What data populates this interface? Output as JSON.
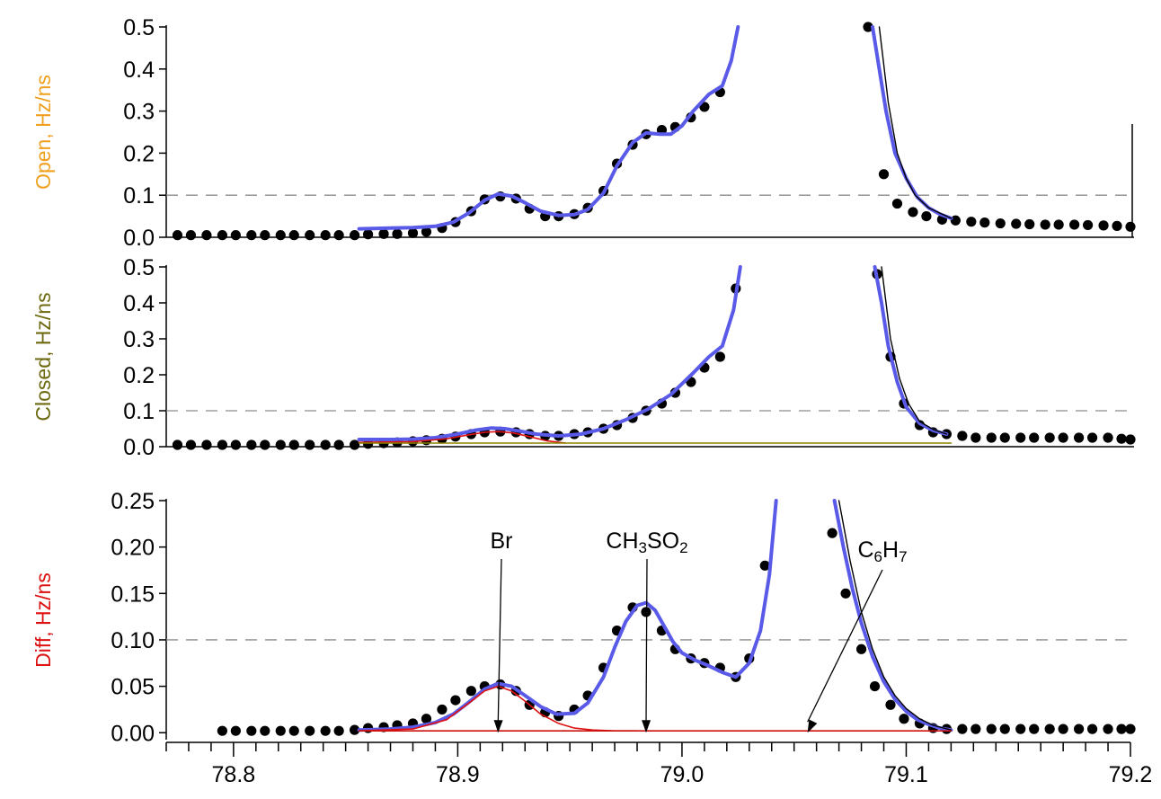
{
  "chart_data": [
    {
      "type": "scatter",
      "panel": "open",
      "ylabel": [
        "Open",
        ", Hz/ns"
      ],
      "ylabel_colors": [
        "#f0a020",
        "#f0a020"
      ],
      "ylim": [
        0,
        0.5
      ],
      "yticks": [
        "0.0",
        "0.1",
        "0.2",
        "0.3",
        "0.4",
        "0.5"
      ],
      "ytick_values": [
        0,
        0.1,
        0.2,
        0.3,
        0.4,
        0.5
      ],
      "reference_line": 0.1,
      "series": [
        {
          "role": "measured points",
          "style": "markers",
          "color": "#000000",
          "x": [
            78.775,
            78.781,
            78.788,
            78.795,
            78.801,
            78.808,
            78.814,
            78.821,
            78.827,
            78.834,
            78.841,
            78.847,
            78.854,
            78.86,
            78.867,
            78.873,
            78.88,
            78.886,
            78.893,
            78.899,
            78.906,
            78.912,
            78.919,
            78.926,
            78.932,
            78.939,
            78.945,
            78.952,
            78.958,
            78.965,
            78.971,
            78.978,
            78.984,
            78.991,
            78.997,
            79.004,
            79.01,
            79.017,
            79.083,
            79.09,
            79.096,
            79.103,
            79.109,
            79.116,
            79.122,
            79.129,
            79.135,
            79.142,
            79.149,
            79.155,
            79.162,
            79.168,
            79.175,
            79.181,
            79.188,
            79.194,
            79.2
          ],
          "y": [
            0.005,
            0.005,
            0.005,
            0.005,
            0.005,
            0.005,
            0.005,
            0.005,
            0.005,
            0.005,
            0.005,
            0.005,
            0.005,
            0.007,
            0.008,
            0.008,
            0.01,
            0.013,
            0.022,
            0.036,
            0.062,
            0.09,
            0.097,
            0.092,
            0.068,
            0.05,
            0.05,
            0.055,
            0.07,
            0.11,
            0.175,
            0.22,
            0.245,
            0.255,
            0.262,
            0.285,
            0.31,
            0.345,
            0.5,
            0.15,
            0.08,
            0.06,
            0.05,
            0.042,
            0.04,
            0.037,
            0.035,
            0.033,
            0.032,
            0.031,
            0.03,
            0.03,
            0.03,
            0.029,
            0.028,
            0.027,
            0.025
          ]
        },
        {
          "role": "fit",
          "style": "line",
          "color": "#5a5ae8",
          "x": [
            78.856,
            78.87,
            78.88,
            78.89,
            78.898,
            78.905,
            78.912,
            78.918,
            78.924,
            78.93,
            78.937,
            78.945,
            78.952,
            78.958,
            78.965,
            78.971,
            78.978,
            78.984,
            78.99,
            78.995,
            79.0,
            79.005,
            79.012,
            79.018,
            79.022,
            79.025
          ],
          "y": [
            0.02,
            0.022,
            0.023,
            0.026,
            0.036,
            0.058,
            0.088,
            0.103,
            0.098,
            0.082,
            0.062,
            0.052,
            0.054,
            0.066,
            0.105,
            0.17,
            0.225,
            0.248,
            0.245,
            0.245,
            0.265,
            0.3,
            0.34,
            0.36,
            0.42,
            0.5
          ]
        },
        {
          "role": "fit",
          "style": "line",
          "color": "#5a5ae8",
          "x": [
            79.085,
            79.088,
            79.091,
            79.095,
            79.1,
            79.105,
            79.11,
            79.115,
            79.12
          ],
          "y": [
            0.5,
            0.4,
            0.3,
            0.2,
            0.14,
            0.095,
            0.07,
            0.055,
            0.045
          ]
        },
        {
          "role": "thin curve",
          "style": "line",
          "color": "#000000",
          "x": [
            79.088,
            79.092,
            79.096,
            79.1,
            79.104,
            79.11,
            79.116,
            79.12
          ],
          "y": [
            0.5,
            0.32,
            0.2,
            0.14,
            0.1,
            0.07,
            0.055,
            0.045
          ]
        }
      ]
    },
    {
      "type": "scatter",
      "panel": "closed",
      "ylabel": [
        "Closed",
        ", Hz/ns"
      ],
      "ylabel_colors": [
        "#6e6a12",
        "#6e6a12"
      ],
      "ylim": [
        0,
        0.5
      ],
      "yticks": [
        "0.0",
        "0.1",
        "0.2",
        "0.3",
        "0.4",
        "0.5"
      ],
      "ytick_values": [
        0,
        0.1,
        0.2,
        0.3,
        0.4,
        0.5
      ],
      "reference_line": 0.1,
      "series": [
        {
          "role": "measured points",
          "style": "markers",
          "color": "#000000",
          "x": [
            78.775,
            78.781,
            78.788,
            78.795,
            78.801,
            78.808,
            78.814,
            78.821,
            78.827,
            78.834,
            78.841,
            78.847,
            78.854,
            78.86,
            78.867,
            78.873,
            78.88,
            78.886,
            78.893,
            78.899,
            78.906,
            78.912,
            78.919,
            78.926,
            78.932,
            78.939,
            78.945,
            78.952,
            78.958,
            78.965,
            78.971,
            78.978,
            78.984,
            78.991,
            78.997,
            79.004,
            79.01,
            79.017,
            79.024,
            79.087,
            79.093,
            79.099,
            79.106,
            79.112,
            79.118,
            79.125,
            79.131,
            79.138,
            79.144,
            79.151,
            79.157,
            79.164,
            79.17,
            79.177,
            79.183,
            79.19,
            79.196,
            79.2
          ],
          "y": [
            0.005,
            0.005,
            0.005,
            0.005,
            0.005,
            0.005,
            0.005,
            0.005,
            0.005,
            0.005,
            0.005,
            0.005,
            0.005,
            0.008,
            0.01,
            0.012,
            0.015,
            0.018,
            0.022,
            0.028,
            0.035,
            0.04,
            0.042,
            0.04,
            0.035,
            0.03,
            0.03,
            0.035,
            0.04,
            0.05,
            0.06,
            0.08,
            0.1,
            0.12,
            0.15,
            0.18,
            0.22,
            0.25,
            0.44,
            0.48,
            0.25,
            0.12,
            0.06,
            0.04,
            0.035,
            0.03,
            0.025,
            0.025,
            0.025,
            0.025,
            0.025,
            0.025,
            0.025,
            0.025,
            0.025,
            0.025,
            0.022,
            0.02
          ]
        },
        {
          "role": "fit",
          "style": "line",
          "color": "#5a5ae8",
          "x": [
            78.856,
            78.87,
            78.88,
            78.89,
            78.9,
            78.908,
            78.915,
            78.921,
            78.928,
            78.935,
            78.945,
            78.955,
            78.965,
            78.975,
            78.985,
            78.995,
            79.005,
            79.012,
            79.018,
            79.023,
            79.026
          ],
          "y": [
            0.02,
            0.02,
            0.021,
            0.025,
            0.035,
            0.046,
            0.052,
            0.05,
            0.043,
            0.035,
            0.03,
            0.035,
            0.05,
            0.075,
            0.105,
            0.145,
            0.205,
            0.25,
            0.28,
            0.38,
            0.5
          ]
        },
        {
          "role": "fit",
          "style": "line",
          "color": "#5a5ae8",
          "x": [
            79.086,
            79.089,
            79.092,
            79.096,
            79.1,
            79.106,
            79.112,
            79.118
          ],
          "y": [
            0.5,
            0.4,
            0.28,
            0.18,
            0.11,
            0.065,
            0.045,
            0.035
          ]
        },
        {
          "role": "thin curve",
          "style": "line",
          "color": "#000000",
          "x": [
            79.089,
            79.093,
            79.097,
            79.101,
            79.106,
            79.112,
            79.118
          ],
          "y": [
            0.5,
            0.3,
            0.19,
            0.12,
            0.07,
            0.048,
            0.035
          ]
        },
        {
          "role": "Br component",
          "style": "line",
          "color": "#dd1111",
          "x": [
            78.856,
            78.88,
            78.895,
            78.905,
            78.912,
            78.918,
            78.925,
            78.932,
            78.94,
            78.948
          ],
          "y": [
            0.012,
            0.014,
            0.022,
            0.033,
            0.04,
            0.042,
            0.038,
            0.028,
            0.016,
            0.01
          ]
        },
        {
          "role": "baseline",
          "style": "line",
          "color": "#8a8200",
          "x": [
            78.856,
            79.12
          ],
          "y": [
            0.01,
            0.01
          ]
        }
      ]
    },
    {
      "type": "scatter",
      "panel": "diff",
      "ylabel": [
        "Diff",
        ", Hz/ns"
      ],
      "ylabel_colors": [
        "#dd1111",
        "#dd1111"
      ],
      "ylim": [
        -0.0075,
        0.25
      ],
      "yticks": [
        "0.00",
        "0.05",
        "0.10",
        "0.15",
        "0.20",
        "0.25"
      ],
      "ytick_values": [
        0,
        0.05,
        0.1,
        0.15,
        0.2,
        0.25
      ],
      "reference_line": 0.1,
      "xlim": [
        78.77,
        79.2
      ],
      "xticks": [
        "78.8",
        "78.9",
        "79.0",
        "79.1",
        "79.2"
      ],
      "xtick_values": [
        78.8,
        78.9,
        79.0,
        79.1,
        79.2
      ],
      "series": [
        {
          "role": "measured points",
          "style": "markers",
          "color": "#000000",
          "x": [
            78.795,
            78.801,
            78.808,
            78.814,
            78.821,
            78.827,
            78.834,
            78.841,
            78.847,
            78.854,
            78.86,
            78.867,
            78.873,
            78.88,
            78.886,
            78.893,
            78.899,
            78.906,
            78.912,
            78.919,
            78.926,
            78.932,
            78.939,
            78.945,
            78.952,
            78.958,
            78.965,
            78.971,
            78.978,
            78.984,
            78.991,
            78.997,
            79.004,
            79.01,
            79.017,
            79.024,
            79.03,
            79.037,
            79.067,
            79.073,
            79.08,
            79.086,
            79.093,
            79.099,
            79.106,
            79.112,
            79.118,
            79.125,
            79.131,
            79.138,
            79.144,
            79.151,
            79.157,
            79.164,
            79.17,
            79.177,
            79.183,
            79.19,
            79.196,
            79.2
          ],
          "y": [
            0.002,
            0.002,
            0.002,
            0.002,
            0.002,
            0.002,
            0.002,
            0.002,
            0.002,
            0.003,
            0.005,
            0.006,
            0.008,
            0.01,
            0.015,
            0.025,
            0.035,
            0.045,
            0.05,
            0.052,
            0.045,
            0.03,
            0.022,
            0.018,
            0.025,
            0.04,
            0.07,
            0.11,
            0.135,
            0.13,
            0.11,
            0.09,
            0.08,
            0.075,
            0.07,
            0.06,
            0.08,
            0.18,
            0.215,
            0.15,
            0.09,
            0.05,
            0.03,
            0.015,
            0.01,
            0.005,
            0.004,
            0.004,
            0.004,
            0.004,
            0.004,
            0.004,
            0.004,
            0.004,
            0.004,
            0.004,
            0.004,
            0.004,
            0.004,
            0.004
          ]
        },
        {
          "role": "fit",
          "style": "line",
          "color": "#5a5ae8",
          "x": [
            78.856,
            78.87,
            78.88,
            78.89,
            78.898,
            78.905,
            78.912,
            78.918,
            78.924,
            78.93,
            78.937,
            78.944,
            78.952,
            78.958,
            78.965,
            78.97,
            78.975,
            78.98,
            78.984,
            78.988,
            78.992,
            78.996,
            79.0,
            79.006,
            79.012,
            79.018,
            79.024,
            79.03,
            79.035,
            79.039,
            79.042
          ],
          "y": [
            0.003,
            0.004,
            0.006,
            0.011,
            0.02,
            0.033,
            0.047,
            0.053,
            0.05,
            0.04,
            0.028,
            0.02,
            0.021,
            0.032,
            0.06,
            0.092,
            0.12,
            0.137,
            0.14,
            0.132,
            0.115,
            0.098,
            0.086,
            0.078,
            0.072,
            0.065,
            0.06,
            0.075,
            0.11,
            0.17,
            0.25
          ]
        },
        {
          "role": "fit",
          "style": "line",
          "color": "#5a5ae8",
          "x": [
            79.068,
            79.072,
            79.076,
            79.08,
            79.085,
            79.09,
            79.095,
            79.1,
            79.105,
            79.11,
            79.115,
            79.12
          ],
          "y": [
            0.25,
            0.2,
            0.155,
            0.118,
            0.082,
            0.055,
            0.036,
            0.023,
            0.014,
            0.009,
            0.005,
            0.003
          ]
        },
        {
          "role": "thin curve",
          "style": "line",
          "color": "#000000",
          "x": [
            79.07,
            79.075,
            79.08,
            79.085,
            79.09,
            79.095,
            79.1,
            79.106,
            79.112,
            79.12
          ],
          "y": [
            0.25,
            0.185,
            0.13,
            0.09,
            0.06,
            0.04,
            0.026,
            0.015,
            0.008,
            0.003
          ]
        },
        {
          "role": "Br component",
          "style": "line",
          "color": "#dd1111",
          "x": [
            78.856,
            78.88,
            78.895,
            78.905,
            78.912,
            78.918,
            78.924,
            78.93,
            78.937,
            78.945,
            78.952,
            78.96,
            78.97,
            78.98
          ],
          "y": [
            0.002,
            0.004,
            0.014,
            0.032,
            0.045,
            0.05,
            0.045,
            0.034,
            0.02,
            0.01,
            0.005,
            0.003,
            0.002,
            0.002
          ]
        },
        {
          "role": "baseline",
          "style": "line",
          "color": "#cc1111",
          "x": [
            78.856,
            79.12
          ],
          "y": [
            0.002,
            0.002
          ]
        }
      ],
      "annotations": [
        {
          "label": "Br",
          "sub": "",
          "parts": [
            {
              "t": "Br"
            }
          ],
          "x": 78.918,
          "y": 0.0
        },
        {
          "label": "CH3SO2",
          "parts": [
            {
              "t": "CH"
            },
            {
              "t": "3",
              "sub": true
            },
            {
              "t": "SO"
            },
            {
              "t": "2",
              "sub": true
            }
          ],
          "x": 78.984,
          "y": 0.0
        },
        {
          "label": "C6H7",
          "parts": [
            {
              "t": "C"
            },
            {
              "t": "6",
              "sub": true
            },
            {
              "t": "H"
            },
            {
              "t": "7",
              "sub": true
            }
          ],
          "x": 79.056,
          "y": 0.0
        }
      ]
    }
  ]
}
